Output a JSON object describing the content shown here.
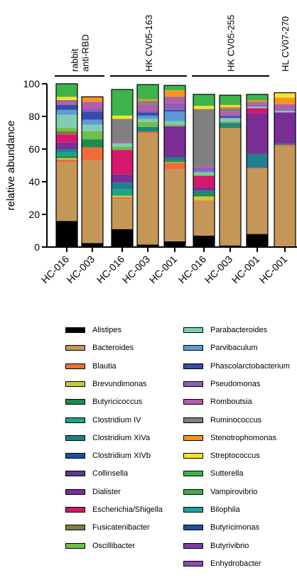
{
  "chart_data": {
    "type": "bar",
    "stacked": true,
    "title": "",
    "xlabel": "",
    "ylabel": "relative abundance",
    "ylim": [
      0,
      100
    ],
    "yticks": [
      0,
      20,
      40,
      60,
      80,
      100
    ],
    "grid": false,
    "legend_position": "bottom, two columns",
    "groups": [
      {
        "label": "rabbit anti-RBD",
        "label_lines": [
          "rabbit",
          "anti-RBD"
        ],
        "categories": [
          "HC-016",
          "HC-003"
        ]
      },
      {
        "label": "HK CV05-163",
        "label_lines": [
          "HK CV05-163"
        ],
        "categories": [
          "HC-016",
          "HC-003",
          "HC-001"
        ]
      },
      {
        "label": "HK CV05-255",
        "label_lines": [
          "HK CV05-255"
        ],
        "categories": [
          "HC-016",
          "HC-003",
          "HC-001"
        ]
      },
      {
        "label": "HL CV07-270",
        "label_lines": [
          "HL CV07-270"
        ],
        "categories": [
          "HC-001"
        ]
      }
    ],
    "categories": [
      "HC-016",
      "HC-003",
      "HC-016",
      "HC-003",
      "HC-001",
      "HC-016",
      "HC-003",
      "HC-001",
      "HC-001"
    ],
    "series": [
      {
        "name": "Alistipes",
        "color": "#000000",
        "values": [
          16,
          2.5,
          11,
          1.5,
          3.5,
          7,
          1,
          8,
          0.5
        ]
      },
      {
        "name": "Bacteroides",
        "color": "#c49658",
        "values": [
          36,
          50.5,
          18.5,
          68,
          44,
          21,
          72,
          40,
          61
        ]
      },
      {
        "name": "Blautia",
        "color": "#f26b3a",
        "values": [
          1.5,
          8,
          1,
          1,
          4,
          0.5,
          0,
          0.5,
          1
        ]
      },
      {
        "name": "Brevundimonas",
        "color": "#c8c83a",
        "values": [
          1,
          0,
          1,
          0,
          0.5,
          2.5,
          0,
          0,
          0
        ]
      },
      {
        "name": "Butyricicoccus",
        "color": "#1f8a4c",
        "values": [
          1.5,
          5,
          0,
          1,
          1,
          2,
          1,
          0,
          0
        ]
      },
      {
        "name": "Clostridium IV",
        "color": "#1aa68a",
        "values": [
          2,
          0,
          4,
          0,
          0,
          0,
          0,
          0,
          0
        ]
      },
      {
        "name": "Clostridium XIVa",
        "color": "#1f7f8c",
        "values": [
          2,
          0,
          4,
          2,
          2,
          1.5,
          2,
          8.5,
          1
        ]
      },
      {
        "name": "Clostridium XIVb",
        "color": "#1f4fa0",
        "values": [
          0,
          0,
          0,
          0,
          0,
          0,
          0,
          0,
          0
        ]
      },
      {
        "name": "Collinsella",
        "color": "#5b3a8f",
        "values": [
          0,
          0,
          0,
          0,
          0,
          0,
          0,
          0,
          0
        ]
      },
      {
        "name": "Dialister",
        "color": "#7b2d96",
        "values": [
          4,
          0,
          5,
          0,
          19,
          2,
          0,
          25,
          19
        ]
      },
      {
        "name": "Escherichia/Shigella",
        "color": "#d6176b",
        "values": [
          5,
          0,
          15,
          0,
          0,
          7,
          0,
          3,
          0
        ]
      },
      {
        "name": "Fusicatenibacter",
        "color": "#7f7f3a",
        "values": [
          2,
          0,
          0,
          0,
          0,
          0,
          0,
          0,
          0
        ]
      },
      {
        "name": "Oscillibacter",
        "color": "#6fbf4a",
        "values": [
          2,
          5,
          2,
          3,
          1,
          1,
          1,
          0,
          0
        ]
      },
      {
        "name": "Parabacteroides",
        "color": "#7fcdb4",
        "values": [
          8,
          4,
          2,
          2,
          2,
          1,
          2,
          1,
          1
        ]
      },
      {
        "name": "Parvibaculum",
        "color": "#5b9bd5",
        "values": [
          3,
          3,
          0,
          2,
          6,
          1,
          0,
          0,
          0
        ]
      },
      {
        "name": "Phascolarctobacterium",
        "color": "#3a4aa8",
        "values": [
          3,
          5,
          0,
          2,
          1,
          0,
          1,
          0,
          0
        ]
      },
      {
        "name": "Pseudomonas",
        "color": "#8f5fb8",
        "values": [
          1,
          2,
          0,
          1,
          4,
          2,
          1,
          1,
          1
        ]
      },
      {
        "name": "Romboutsia",
        "color": "#b05fa8",
        "values": [
          2,
          4,
          1,
          4,
          4,
          1,
          2,
          1,
          3
        ]
      },
      {
        "name": "Ruminococcus",
        "color": "#808080",
        "values": [
          0,
          0,
          14,
          2,
          0,
          35,
          2,
          1,
          0
        ]
      },
      {
        "name": "Stenotrophomonas",
        "color": "#f7941d",
        "values": [
          0,
          3,
          0,
          1,
          4,
          0,
          1,
          1,
          4
        ]
      },
      {
        "name": "Streptococcus",
        "color": "#f2e52a",
        "values": [
          2,
          0,
          2,
          0,
          0,
          2,
          1,
          0,
          3
        ]
      },
      {
        "name": "Sutterella",
        "color": "#3cb44b",
        "values": [
          8,
          0,
          16,
          9,
          3,
          7,
          6,
          3.5,
          0
        ]
      },
      {
        "name": "Vampirovibrio",
        "color": "#4aa84a",
        "values": [
          0,
          0,
          0,
          0,
          0,
          0,
          0,
          0,
          0
        ]
      },
      {
        "name": "Bilophila",
        "color": "#1ca0a0",
        "values": [
          0,
          0,
          0,
          0,
          0,
          0,
          0,
          0,
          0
        ]
      },
      {
        "name": "Butyricimonas",
        "color": "#1f4f9f",
        "values": [
          0,
          0,
          0,
          0,
          0,
          0,
          0,
          0,
          0
        ]
      },
      {
        "name": "Butyrivibrio",
        "color": "#7a3fa6",
        "values": [
          0,
          0,
          0,
          0,
          0,
          0,
          0,
          0,
          0
        ]
      },
      {
        "name": "Enhydrobacter",
        "color": "#8a4fb0",
        "values": [
          0,
          0,
          0,
          0,
          0,
          0,
          0,
          0,
          0
        ]
      }
    ],
    "legend_columns": [
      [
        "Alistipes",
        "Bacteroides",
        "Blautia",
        "Brevundimonas",
        "Butyricicoccus",
        "Clostridium IV",
        "Clostridium XIVa",
        "Clostridium XIVb",
        "Collinsella",
        "Dialister",
        "Escherichia/Shigella",
        "Fusicatenibacter",
        "Oscillibacter"
      ],
      [
        "Parabacteroides",
        "Parvibaculum",
        "Phascolarctobacterium",
        "Pseudomonas",
        "Romboutsia",
        "Ruminococcus",
        "Stenotrophomonas",
        "Streptococcus",
        "Sutterella",
        "Vampirovibrio",
        "Bilophila",
        "Butyricimonas",
        "Butyrivibrio",
        "Enhydrobacter"
      ]
    ]
  }
}
